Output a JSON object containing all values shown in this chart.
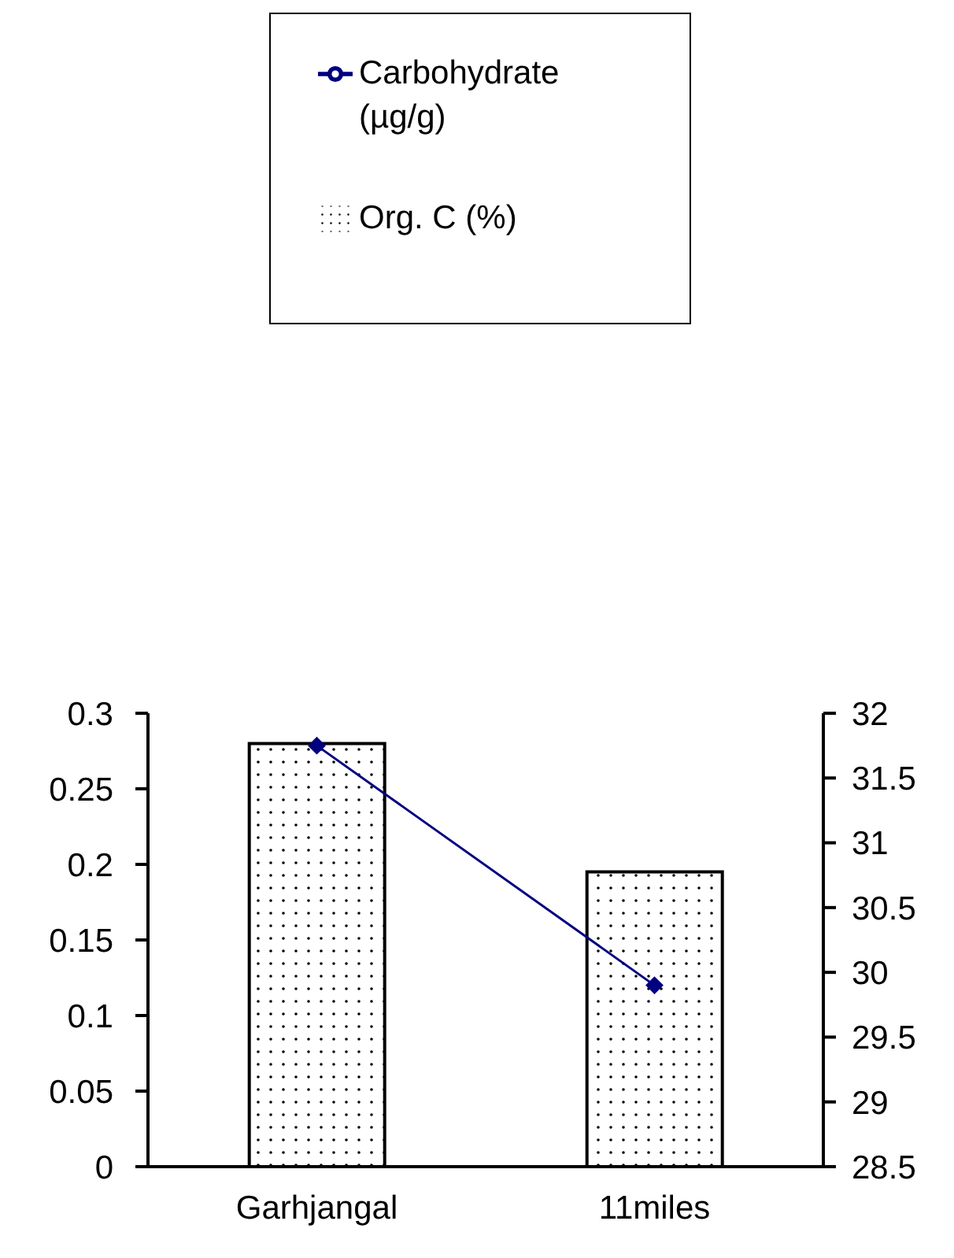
{
  "chart_data": {
    "type": "bar",
    "categories": [
      "Garhjangal",
      "11miles"
    ],
    "series": [
      {
        "name": "Org. C (%)",
        "color": "#000000",
        "values": [
          0.28,
          0.195
        ]
      },
      {
        "name": "Carbohydrate (µg/g)",
        "type": "line",
        "axis": "y2",
        "color": "#000080",
        "marker": "diamond",
        "values": [
          31.75,
          29.9
        ]
      }
    ],
    "ylim": [
      0,
      0.3
    ],
    "yticks": [
      0,
      0.05,
      0.1,
      0.15,
      0.2,
      0.25,
      0.3
    ],
    "y2lim": [
      28.5,
      32
    ],
    "y2ticks": [
      28.5,
      29,
      29.5,
      30,
      30.5,
      31,
      31.5,
      32
    ],
    "grid": false,
    "legend": "top"
  }
}
